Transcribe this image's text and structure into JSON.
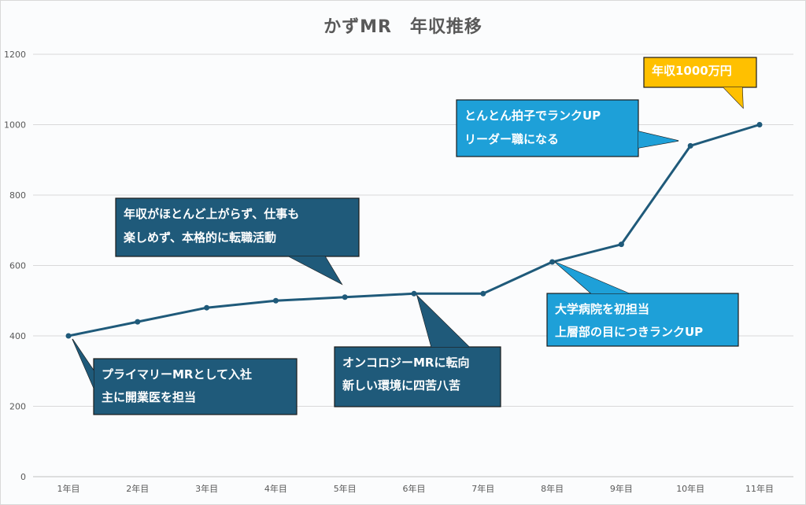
{
  "chart_data": {
    "type": "line",
    "title": "かずMR　年収推移",
    "categories": [
      "1年目",
      "2年目",
      "3年目",
      "4年目",
      "5年目",
      "6年目",
      "7年目",
      "8年目",
      "9年目",
      "10年目",
      "11年目"
    ],
    "values": [
      400,
      440,
      480,
      500,
      510,
      520,
      520,
      610,
      660,
      940,
      1000
    ],
    "ylim": [
      0,
      1200
    ],
    "yticks": [
      0,
      200,
      400,
      600,
      800,
      1000,
      1200
    ],
    "grid": true,
    "line_color": "#1f5a7a",
    "annotations": [
      {
        "lines": [
          "プライマリーMRとして入社",
          "主に開業医を担当"
        ],
        "point": "1年目",
        "fill": "#1f5a7a",
        "text_color": "#ffffff"
      },
      {
        "lines": [
          "年収がほとんど上がらず、仕事も",
          "楽しめず、本格的に転職活動"
        ],
        "point": "5年目",
        "fill": "#1f5a7a",
        "text_color": "#ffffff"
      },
      {
        "lines": [
          "オンコロジーMRに転向",
          "新しい環境に四苦八苦"
        ],
        "point": "6年目",
        "fill": "#1f5a7a",
        "text_color": "#ffffff"
      },
      {
        "lines": [
          "大学病院を初担当",
          "上層部の目につきランクUP"
        ],
        "point": "8年目",
        "fill": "#1ea0d8",
        "text_color": "#ffffff"
      },
      {
        "lines": [
          "とんとん拍子でランクUP",
          "リーダー職になる"
        ],
        "point": "10年目",
        "fill": "#1ea0d8",
        "text_color": "#ffffff"
      },
      {
        "lines": [
          "年収1000万円"
        ],
        "point": "11年目",
        "fill": "#ffc000",
        "text_color": "#ffffff"
      }
    ]
  }
}
